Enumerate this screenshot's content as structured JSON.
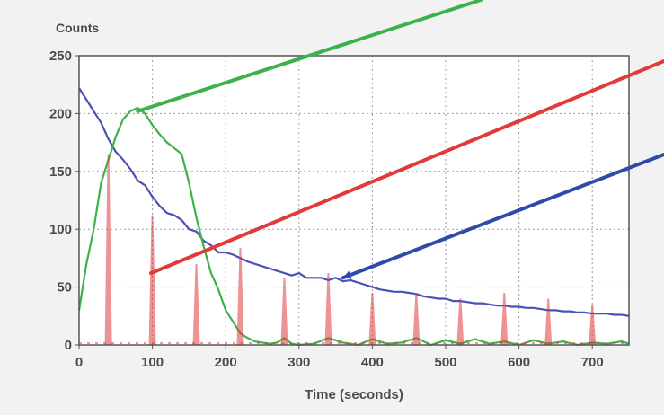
{
  "chart_data": {
    "type": "line",
    "title": "",
    "xlabel": "Time (seconds)",
    "ylabel": "Counts",
    "xlim": [
      0,
      750
    ],
    "ylim": [
      0,
      250
    ],
    "x_ticks": [
      "0",
      "100",
      "200",
      "300",
      "400",
      "500",
      "600",
      "700"
    ],
    "y_ticks": [
      "0",
      "50",
      "100",
      "150",
      "200",
      "250"
    ],
    "grid": true,
    "legend": "none",
    "series": [
      {
        "color": "#4a51b8",
        "x": [
          0,
          10,
          20,
          30,
          40,
          50,
          60,
          70,
          80,
          90,
          100,
          110,
          120,
          130,
          140,
          150,
          160,
          170,
          180,
          190,
          200,
          210,
          220,
          230,
          240,
          250,
          260,
          270,
          280,
          290,
          300,
          310,
          320,
          330,
          340,
          350,
          360,
          370,
          380,
          390,
          400,
          410,
          420,
          430,
          440,
          450,
          460,
          470,
          480,
          490,
          500,
          510,
          520,
          530,
          540,
          550,
          560,
          570,
          580,
          590,
          600,
          610,
          620,
          630,
          640,
          650,
          660,
          670,
          680,
          690,
          700,
          710,
          720,
          730,
          740,
          750
        ],
        "y": [
          222,
          212,
          202,
          192,
          178,
          167,
          160,
          152,
          142,
          138,
          128,
          120,
          114,
          112,
          108,
          100,
          98,
          90,
          86,
          80,
          80,
          78,
          75,
          72,
          70,
          68,
          66,
          64,
          62,
          60,
          62,
          58,
          58,
          58,
          56,
          58,
          55,
          56,
          54,
          52,
          50,
          48,
          47,
          46,
          46,
          45,
          44,
          42,
          41,
          40,
          40,
          38,
          38,
          37,
          36,
          36,
          35,
          34,
          34,
          33,
          33,
          32,
          32,
          31,
          30,
          30,
          29,
          29,
          28,
          28,
          27,
          27,
          27,
          26,
          26,
          25
        ]
      },
      {
        "color": "#3db24a",
        "x": [
          0,
          10,
          20,
          30,
          40,
          50,
          60,
          70,
          80,
          90,
          100,
          110,
          120,
          130,
          140,
          150,
          160,
          170,
          180,
          190,
          200,
          210,
          220,
          230,
          240,
          250,
          260,
          270,
          280,
          290,
          300,
          320,
          340,
          360,
          380,
          400,
          420,
          440,
          460,
          480,
          500,
          520,
          540,
          560,
          580,
          600,
          620,
          640,
          660,
          680,
          700,
          720,
          740,
          750
        ],
        "y": [
          30,
          70,
          100,
          140,
          160,
          180,
          195,
          202,
          205,
          200,
          190,
          182,
          175,
          170,
          165,
          140,
          110,
          85,
          62,
          48,
          30,
          20,
          10,
          6,
          3,
          2,
          1,
          2,
          6,
          1,
          0,
          1,
          6,
          2,
          0,
          5,
          1,
          2,
          6,
          0,
          4,
          1,
          5,
          1,
          3,
          0,
          4,
          1,
          3,
          0,
          2,
          1,
          3,
          1
        ]
      },
      {
        "color": "#e03a3a",
        "x": [
          40,
          100,
          160,
          220,
          280,
          340,
          400,
          460,
          520,
          580,
          640,
          700
        ],
        "y": [
          165,
          112,
          70,
          84,
          58,
          62,
          45,
          45,
          40,
          45,
          40,
          35
        ]
      }
    ],
    "annotations": [
      {
        "color": "#3db24a",
        "from": [
          80,
          202
        ],
        "direction": "upper-right"
      },
      {
        "color": "#e03a3a",
        "from": [
          98,
          62
        ],
        "direction": "upper-right"
      },
      {
        "color": "#2f4aa8",
        "from": [
          360,
          58
        ],
        "direction": "upper-right"
      }
    ]
  }
}
